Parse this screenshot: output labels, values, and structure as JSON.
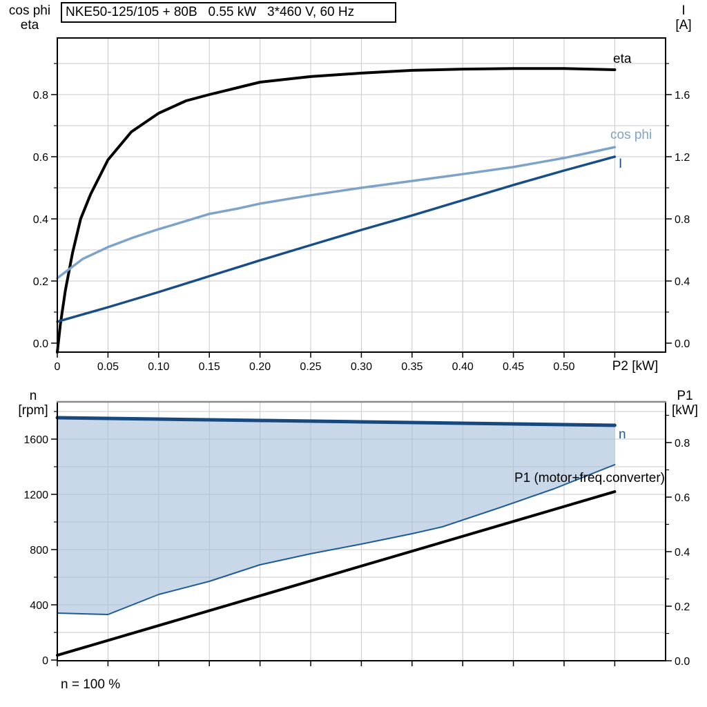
{
  "title": "NKE50-125/105 + 80B   0.55 kW   3*460 V, 60 Hz",
  "colors": {
    "black": "#000000",
    "cos_phi_blue": "#7da3c9",
    "current_blue": "#174e87",
    "n_max_blue": "#17497e",
    "n_min_blue": "#1d5a96",
    "duty_fill": "rgba(163,190,216,0.6)",
    "grid": "#c9c9c9",
    "border": "#000000",
    "border_top2": "#8a8a8a"
  },
  "top_chart": {
    "axis_left_title": [
      "cos phi",
      "eta"
    ],
    "axis_right_title": [
      "I",
      "[A]"
    ],
    "x_axis_title": "P2 [kW]",
    "curve_labels": {
      "eta": "eta",
      "cos_phi": "cos phi",
      "current": "I"
    }
  },
  "bottom_chart": {
    "axis_left_title": [
      "n",
      "[rpm]"
    ],
    "axis_right_title": [
      "P1",
      "[kW]"
    ],
    "curve_labels": {
      "n": "n",
      "p1": "P1 (motor+freq.converter)"
    },
    "footer": "n = 100 %"
  },
  "chart_data": [
    {
      "type": "line",
      "title": "NKE50-125/105 + 80B   0.55 kW   3*460 V, 60 Hz",
      "xlabel": "P2 [kW]",
      "ylabel_left": "cos phi / eta",
      "ylabel_right": "I [A]",
      "xlim": [
        0,
        0.6
      ],
      "ylim_left": [
        -0.03,
        0.98
      ],
      "ylim_right": [
        -0.06,
        1.96
      ],
      "grid": true,
      "x_ticks": {
        "values": [
          0,
          0.05,
          0.1,
          0.15,
          0.2,
          0.25,
          0.3,
          0.35,
          0.4,
          0.45,
          0.5,
          0.55
        ],
        "labels": [
          "0",
          "0.05",
          "0.10",
          "0.15",
          "0.20",
          "0.25",
          "0.30",
          "0.35",
          "0.40",
          "0.45",
          "0.50"
        ]
      },
      "y_ticks_left": {
        "values": [
          0,
          0.2,
          0.4,
          0.6,
          0.8
        ],
        "labels": [
          "0.0",
          "0.2",
          "0.4",
          "0.6",
          "0.8"
        ],
        "minors": [
          0.1,
          0.3,
          0.5,
          0.7,
          0.9
        ]
      },
      "y_ticks_right": {
        "values": [
          0,
          0.4,
          0.8,
          1.2,
          1.6
        ],
        "labels": [
          "0.0",
          "0.4",
          "0.8",
          "1.2",
          "1.6"
        ],
        "minors": [
          0.2,
          0.6,
          1.0,
          1.4,
          1.8
        ]
      },
      "grid_x": [
        0.05,
        0.1,
        0.15,
        0.2,
        0.25,
        0.3,
        0.35,
        0.4,
        0.45,
        0.5,
        0.55
      ],
      "grid_y_left": [
        0.1,
        0.2,
        0.3,
        0.4,
        0.5,
        0.6,
        0.7,
        0.8,
        0.9
      ],
      "series": [
        {
          "name": "eta",
          "axis": "left",
          "color": "#000000",
          "width": 4,
          "x": [
            0,
            0.003,
            0.008,
            0.015,
            0.023,
            0.033,
            0.05,
            0.073,
            0.1,
            0.127,
            0.15,
            0.175,
            0.2,
            0.25,
            0.3,
            0.35,
            0.4,
            0.45,
            0.5,
            0.55
          ],
          "y": [
            -0.029,
            0.06,
            0.17,
            0.29,
            0.4,
            0.48,
            0.59,
            0.68,
            0.74,
            0.78,
            0.8,
            0.82,
            0.84,
            0.858,
            0.869,
            0.878,
            0.882,
            0.884,
            0.884,
            0.88
          ]
        },
        {
          "name": "cos phi",
          "axis": "left",
          "color": "#7da3c9",
          "width": 3.5,
          "x": [
            0,
            0.025,
            0.05,
            0.075,
            0.1,
            0.127,
            0.15,
            0.178,
            0.2,
            0.25,
            0.3,
            0.35,
            0.4,
            0.45,
            0.5,
            0.525,
            0.55
          ],
          "y": [
            0.209,
            0.271,
            0.309,
            0.34,
            0.367,
            0.393,
            0.416,
            0.433,
            0.449,
            0.476,
            0.5,
            0.522,
            0.544,
            0.567,
            0.596,
            0.613,
            0.631
          ]
        },
        {
          "name": "I",
          "axis": "right",
          "color": "#174e87",
          "width": 3.5,
          "x": [
            0,
            0.05,
            0.1,
            0.15,
            0.2,
            0.25,
            0.3,
            0.35,
            0.4,
            0.45,
            0.5,
            0.55
          ],
          "y": [
            0.138,
            0.231,
            0.329,
            0.431,
            0.533,
            0.631,
            0.729,
            0.822,
            0.92,
            1.018,
            1.111,
            1.2
          ]
        }
      ]
    },
    {
      "type": "line",
      "xlabel": "",
      "ylabel_left": "n [rpm]",
      "ylabel_right": "P1 [kW]",
      "xlim": [
        0,
        0.6
      ],
      "ylim_left": [
        0,
        1875
      ],
      "ylim_right": [
        0,
        0.95
      ],
      "grid": true,
      "x_ticks": {
        "values": [
          0,
          0.05,
          0.1,
          0.15,
          0.2,
          0.25,
          0.3,
          0.35,
          0.4,
          0.45,
          0.5,
          0.55
        ],
        "labels": []
      },
      "y_ticks_left": {
        "values": [
          0,
          400,
          800,
          1200,
          1600
        ],
        "labels": [
          "0",
          "400",
          "800",
          "1200",
          "1600"
        ],
        "minors": [
          200,
          600,
          1000,
          1400,
          1800
        ]
      },
      "y_ticks_right": {
        "values": [
          0,
          0.2,
          0.4,
          0.6,
          0.8
        ],
        "labels": [
          "0.0",
          "0.2",
          "0.4",
          "0.6",
          "0.8"
        ],
        "minors": [
          0.1,
          0.3,
          0.5,
          0.7,
          0.9
        ]
      },
      "grid_x": [
        0.05,
        0.1,
        0.15,
        0.2,
        0.25,
        0.3,
        0.35,
        0.4,
        0.45,
        0.5,
        0.55
      ],
      "grid_y_left": [
        200,
        400,
        600,
        800,
        1000,
        1200,
        1400,
        1600,
        1800
      ],
      "area": {
        "upper": "n",
        "lower": "n min",
        "fill": "rgba(163,190,216,0.6)"
      },
      "footnote": "n = 100 %",
      "series": [
        {
          "name": "n",
          "axis": "left",
          "color": "#17497e",
          "width": 5,
          "x": [
            0,
            0.1,
            0.2,
            0.3,
            0.4,
            0.5,
            0.55
          ],
          "y": [
            1755,
            1745,
            1735,
            1725,
            1715,
            1705,
            1700
          ]
        },
        {
          "name": "n min",
          "axis": "left",
          "color": "#1d5a96",
          "width": 2,
          "x": [
            0,
            0.05,
            0.1,
            0.15,
            0.2,
            0.25,
            0.3,
            0.35,
            0.38,
            0.435,
            0.49,
            0.55
          ],
          "y": [
            340,
            330,
            475,
            570,
            690,
            770,
            840,
            915,
            965,
            1100,
            1240,
            1415
          ]
        },
        {
          "name": "P1 (motor+freq.converter)",
          "axis": "right",
          "color": "#000000",
          "width": 4,
          "x": [
            0,
            0.55
          ],
          "y": [
            0.02,
            0.62
          ]
        }
      ]
    }
  ]
}
